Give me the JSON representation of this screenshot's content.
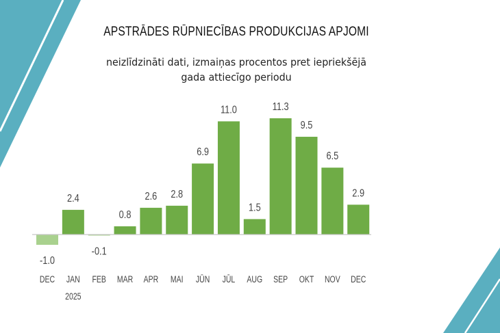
{
  "colors": {
    "accent": "#5aafc0",
    "positive": "#6fac46",
    "negative": "#a9d18e",
    "axis": "#c8c8c8",
    "text": "#444444"
  },
  "chart_data": {
    "type": "bar",
    "title": "APSTRĀDES RŪPNIECĪBAS PRODUKCIJAS APJOMI",
    "subtitle_lines": [
      "neizlīdzināti dati, izmaiņas procentos pret iepriekšējā",
      "gada attiecīgo periodu"
    ],
    "categories": [
      "DEC",
      "JAN",
      "FEB",
      "MAR",
      "APR",
      "MAI",
      "JŪN",
      "JŪL",
      "AUG",
      "SEP",
      "OKT",
      "NOV",
      "DEC"
    ],
    "category_sublabels": [
      "",
      "2025",
      "",
      "",
      "",
      "",
      "",
      "",
      "",
      "",
      "",
      "",
      ""
    ],
    "values": [
      -1.0,
      2.4,
      -0.1,
      0.8,
      2.6,
      2.8,
      6.9,
      11.0,
      1.5,
      11.3,
      9.5,
      6.5,
      2.9
    ],
    "data_labels": [
      "-1.0",
      "2.4",
      "-0.1",
      "0.8",
      "2.6",
      "2.8",
      "6.9",
      "11.0",
      "1.5",
      "11.3",
      "9.5",
      "6.5",
      "2.9"
    ],
    "xlabel": "",
    "ylabel": "",
    "grid": false,
    "legend": "none"
  }
}
